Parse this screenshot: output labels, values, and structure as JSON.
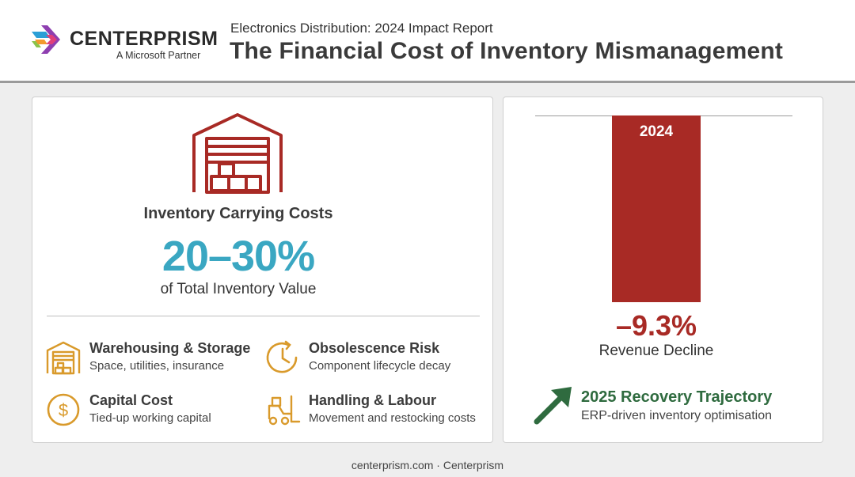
{
  "header": {
    "brand_name": "CENTERPRISM",
    "brand_tagline": "A Microsoft Partner",
    "subtitle": "Electronics Distribution: 2024 Impact Report",
    "title": "The Financial Cost of Inventory Mismanagement"
  },
  "carrying": {
    "icon": "warehouse-icon",
    "title": "Inventory Carrying Costs",
    "value": "20–30%",
    "subtitle": "of Total Inventory Value",
    "accent": "#3aa7c2",
    "factors": [
      {
        "icon": "warehouse-icon",
        "title": "Warehousing & Storage",
        "desc": "Space, utilities, insurance"
      },
      {
        "icon": "clock-icon",
        "title": "Obsolescence Risk",
        "desc": "Component lifecycle decay"
      },
      {
        "icon": "dollar-icon",
        "title": "Capital Cost",
        "desc": "Tied-up working capital"
      },
      {
        "icon": "forklift-icon",
        "title": "Handling & Labour",
        "desc": "Movement and restocking costs"
      }
    ],
    "icon_color": "#d99a2b"
  },
  "revenue": {
    "bar_label": "2024",
    "value": "–9.3%",
    "label": "Revenue Decline",
    "color": "#a82a25"
  },
  "recovery": {
    "icon": "arrow-up-right-icon",
    "title": "2025 Recovery Trajectory",
    "subtitle": "ERP-driven inventory optimisation",
    "color": "#2f6b3f"
  },
  "footer": {
    "text": "centerprism.com · Centerprism"
  }
}
